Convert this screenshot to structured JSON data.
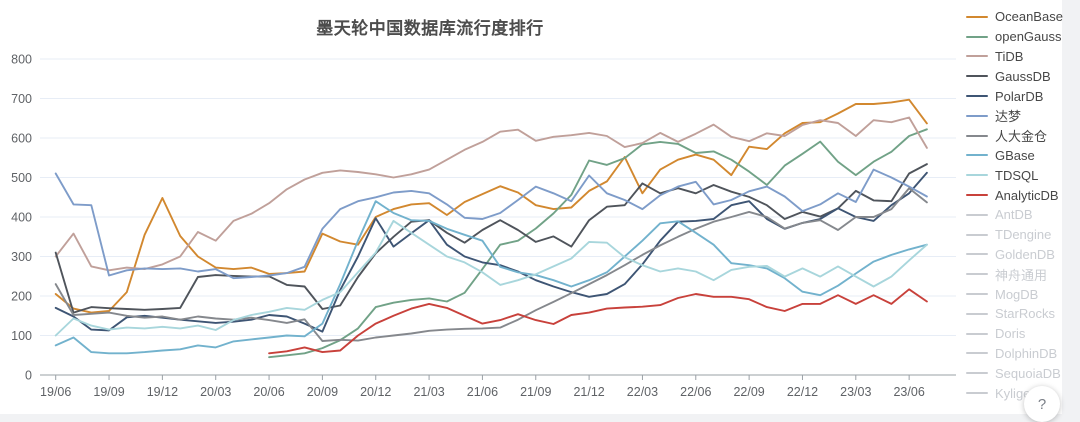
{
  "page": {
    "title": "墨天轮中国数据库流行度排行",
    "help_button_glyph": "?"
  },
  "chart_data": {
    "type": "line",
    "title": "墨天轮中国数据库流行度排行",
    "xlabel": "",
    "ylabel": "",
    "ylim": [
      0,
      800
    ],
    "y_ticks": [
      0,
      100,
      200,
      300,
      400,
      500,
      600,
      700,
      800
    ],
    "grid": true,
    "legend_position": "right",
    "x": [
      "19/06",
      "19/07",
      "19/08",
      "19/09",
      "19/10",
      "19/11",
      "19/12",
      "20/01",
      "20/02",
      "20/03",
      "20/04",
      "20/05",
      "20/06",
      "20/07",
      "20/08",
      "20/09",
      "20/10",
      "20/11",
      "20/12",
      "21/01",
      "21/02",
      "21/03",
      "21/04",
      "21/05",
      "21/06",
      "21/07",
      "21/08",
      "21/09",
      "21/10",
      "21/11",
      "21/12",
      "22/01",
      "22/02",
      "22/03",
      "22/04",
      "22/05",
      "22/06",
      "22/07",
      "22/08",
      "22/09",
      "22/10",
      "22/11",
      "22/12",
      "23/01",
      "23/02",
      "23/03",
      "23/04",
      "23/05",
      "23/06",
      "23/07"
    ],
    "x_tick_labels": [
      "19/06",
      "19/09",
      "19/12",
      "20/03",
      "20/06",
      "20/09",
      "20/12",
      "21/03",
      "21/06",
      "21/09",
      "21/12",
      "22/03",
      "22/06",
      "22/09",
      "22/12",
      "23/03",
      "23/06"
    ],
    "series": [
      {
        "name": "OceanBase",
        "color": "#d2882f",
        "active": true,
        "values": [
          205,
          168,
          158,
          162,
          210,
          355,
          448,
          352,
          300,
          272,
          268,
          272,
          256,
          258,
          262,
          358,
          338,
          330,
          400,
          420,
          432,
          435,
          405,
          438,
          458,
          478,
          462,
          430,
          420,
          424,
          466,
          490,
          552,
          460,
          520,
          545,
          558,
          545,
          506,
          578,
          572,
          612,
          638,
          640,
          662,
          686,
          686,
          690,
          697,
          637
        ]
      },
      {
        "name": "openGauss",
        "color": "#71a287",
        "active": true,
        "values": [
          null,
          null,
          null,
          null,
          null,
          null,
          null,
          null,
          null,
          null,
          null,
          null,
          45,
          50,
          55,
          68,
          88,
          118,
          172,
          183,
          190,
          194,
          186,
          208,
          268,
          330,
          340,
          371,
          409,
          456,
          543,
          532,
          549,
          584,
          590,
          585,
          562,
          566,
          545,
          515,
          481,
          530,
          560,
          591,
          540,
          506,
          540,
          565,
          605,
          622
        ]
      },
      {
        "name": "TiDB",
        "color": "#c0a09a",
        "active": true,
        "values": [
          300,
          358,
          275,
          265,
          272,
          268,
          280,
          300,
          362,
          340,
          390,
          408,
          435,
          470,
          495,
          512,
          518,
          514,
          508,
          500,
          508,
          520,
          545,
          570,
          590,
          616,
          621,
          593,
          603,
          607,
          613,
          605,
          577,
          587,
          613,
          590,
          611,
          634,
          603,
          592,
          612,
          605,
          633,
          645,
          638,
          605,
          645,
          640,
          652,
          575
        ]
      },
      {
        "name": "GaussDB",
        "color": "#4f545b",
        "active": true,
        "values": [
          310,
          158,
          172,
          169,
          167,
          165,
          167,
          170,
          248,
          253,
          251,
          249,
          250,
          228,
          224,
          167,
          176,
          248,
          308,
          350,
          388,
          392,
          360,
          335,
          367,
          392,
          367,
          337,
          351,
          325,
          392,
          426,
          430,
          485,
          460,
          473,
          460,
          481,
          464,
          451,
          430,
          395,
          413,
          401,
          422,
          466,
          442,
          440,
          510,
          534
        ]
      },
      {
        "name": "PolarDB",
        "color": "#3e5574",
        "active": true,
        "values": [
          170,
          148,
          115,
          113,
          146,
          150,
          145,
          140,
          136,
          132,
          135,
          140,
          152,
          148,
          130,
          110,
          215,
          300,
          397,
          325,
          359,
          392,
          330,
          300,
          285,
          278,
          262,
          240,
          224,
          210,
          198,
          205,
          230,
          280,
          340,
          388,
          390,
          395,
          430,
          440,
          395,
          370,
          385,
          395,
          422,
          400,
          390,
          430,
          460,
          512
        ]
      },
      {
        "name": "达梦",
        "color": "#7e9cc9",
        "active": true,
        "values": [
          510,
          432,
          430,
          252,
          265,
          270,
          268,
          270,
          262,
          268,
          245,
          248,
          252,
          258,
          274,
          370,
          420,
          440,
          450,
          462,
          466,
          460,
          432,
          398,
          395,
          410,
          443,
          477,
          460,
          440,
          505,
          460,
          443,
          420,
          455,
          477,
          489,
          432,
          443,
          465,
          477,
          452,
          415,
          432,
          460,
          438,
          520,
          500,
          477,
          452
        ]
      },
      {
        "name": "人大金仓",
        "color": "#85888d",
        "active": true,
        "values": [
          230,
          152,
          155,
          158,
          150,
          145,
          148,
          140,
          148,
          143,
          140,
          145,
          139,
          132,
          141,
          86,
          89,
          87,
          95,
          100,
          105,
          112,
          115,
          117,
          118,
          120,
          140,
          164,
          185,
          207,
          230,
          253,
          278,
          304,
          328,
          350,
          370,
          388,
          400,
          413,
          400,
          371,
          385,
          392,
          367,
          400,
          400,
          420,
          473,
          437
        ]
      },
      {
        "name": "GBase",
        "color": "#72b2cd",
        "active": true,
        "values": [
          75,
          95,
          58,
          55,
          55,
          58,
          62,
          65,
          75,
          70,
          85,
          90,
          95,
          100,
          98,
          130,
          230,
          340,
          440,
          410,
          392,
          390,
          370,
          355,
          340,
          274,
          260,
          253,
          240,
          224,
          240,
          260,
          300,
          340,
          384,
          389,
          360,
          330,
          283,
          278,
          270,
          245,
          211,
          202,
          226,
          257,
          287,
          304,
          318,
          330
        ]
      },
      {
        "name": "TDSQL",
        "color": "#a8d6dc",
        "active": true,
        "values": [
          100,
          143,
          125,
          115,
          120,
          118,
          122,
          118,
          125,
          114,
          139,
          152,
          160,
          170,
          165,
          190,
          210,
          260,
          310,
          390,
          360,
          330,
          300,
          285,
          260,
          228,
          240,
          255,
          275,
          295,
          337,
          335,
          298,
          278,
          262,
          270,
          262,
          240,
          266,
          274,
          276,
          249,
          270,
          249,
          275,
          249,
          224,
          249,
          290,
          330
        ]
      },
      {
        "name": "AnalyticDB",
        "color": "#c8413b",
        "active": true,
        "values": [
          null,
          null,
          null,
          null,
          null,
          null,
          null,
          null,
          null,
          null,
          null,
          null,
          55,
          60,
          70,
          58,
          62,
          100,
          130,
          150,
          168,
          180,
          170,
          150,
          130,
          139,
          154,
          139,
          129,
          152,
          158,
          168,
          171,
          173,
          177,
          195,
          205,
          198,
          198,
          192,
          172,
          162,
          180,
          180,
          202,
          180,
          202,
          180,
          217,
          186
        ]
      },
      {
        "name": "AntDB",
        "color": "#c9ccd1",
        "active": false,
        "values": []
      },
      {
        "name": "TDengine",
        "color": "#c9ccd1",
        "active": false,
        "values": []
      },
      {
        "name": "GoldenDB",
        "color": "#c9ccd1",
        "active": false,
        "values": []
      },
      {
        "name": "神舟通用",
        "color": "#c9ccd1",
        "active": false,
        "values": []
      },
      {
        "name": "MogDB",
        "color": "#c9ccd1",
        "active": false,
        "values": []
      },
      {
        "name": "StarRocks",
        "color": "#c9ccd1",
        "active": false,
        "values": []
      },
      {
        "name": "Doris",
        "color": "#c9ccd1",
        "active": false,
        "values": []
      },
      {
        "name": "DolphinDB",
        "color": "#c9ccd1",
        "active": false,
        "values": []
      },
      {
        "name": "SequoiaDB",
        "color": "#c9ccd1",
        "active": false,
        "values": []
      },
      {
        "name": "Kyligence",
        "color": "#c9ccd1",
        "active": false,
        "values": []
      }
    ],
    "style": {
      "grid_color": "#e7edf6",
      "axis_line_color": "#9aa0a6",
      "tick_label_color": "#5f6266",
      "title_color": "#4c4c4c"
    }
  }
}
